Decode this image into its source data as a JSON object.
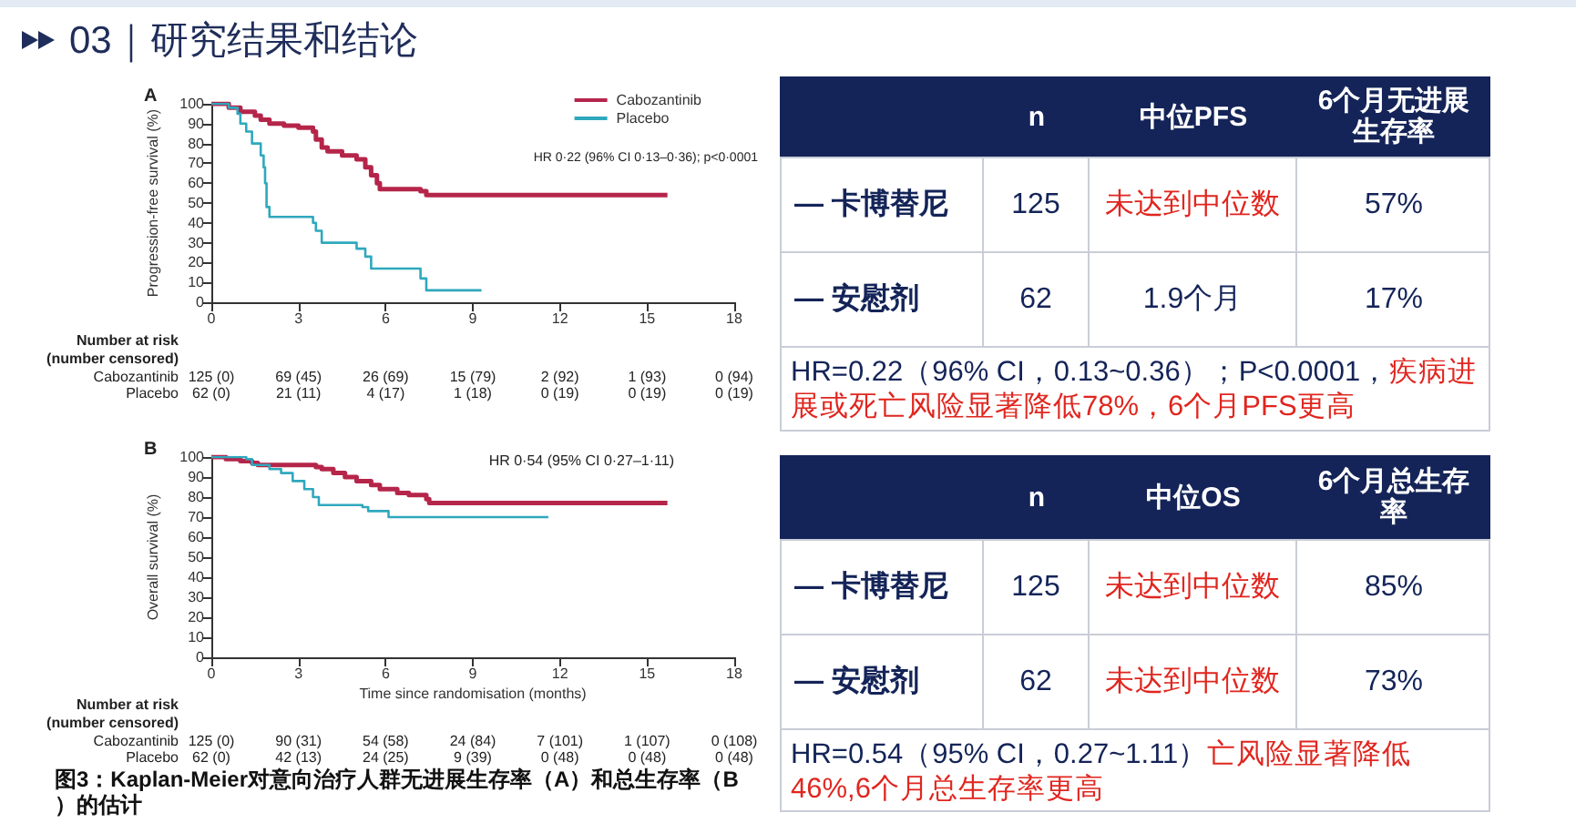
{
  "chart_data": [
    {
      "type": "step",
      "title": "A",
      "ylabel": "Progression-free survival (%)",
      "xlim": [
        0,
        18
      ],
      "xticks": [
        0,
        3,
        6,
        9,
        12,
        15,
        18
      ],
      "ylim": [
        0,
        100
      ],
      "yticks": [
        0,
        10,
        20,
        30,
        40,
        50,
        60,
        70,
        80,
        90,
        100
      ],
      "legend": "top right",
      "marker": "none",
      "line_style": "solid",
      "series": [
        {
          "name": "Cabozantinib",
          "color": "#b5254a",
          "x": [
            0,
            0.6,
            1.0,
            1.5,
            1.7,
            2.0,
            2.5,
            3.0,
            3.5,
            3.6,
            3.8,
            4.0,
            4.5,
            5.0,
            5.3,
            5.5,
            5.7,
            5.8,
            7.2,
            7.4,
            15.7
          ],
          "values": [
            100,
            98,
            96,
            94,
            92,
            90,
            89,
            88,
            86,
            82,
            78,
            76,
            74,
            72,
            68,
            64,
            60,
            57,
            56,
            54,
            54
          ]
        },
        {
          "name": "Placebo",
          "color": "#2fa8bd",
          "x": [
            0,
            0.6,
            0.9,
            1.0,
            1.2,
            1.4,
            1.7,
            1.8,
            1.85,
            1.9,
            2.0,
            3.5,
            3.6,
            3.8,
            5.0,
            5.3,
            5.5,
            7.2,
            7.4,
            9.3
          ],
          "values": [
            100,
            98,
            95,
            90,
            86,
            80,
            74,
            68,
            60,
            48,
            43,
            40,
            36,
            30,
            27,
            23,
            17,
            12,
            6,
            6
          ]
        }
      ],
      "annotations": [
        "HR 0·22 (96% CI 0·13–0·36); p<0·0001",
        "Number at risk\n(number censored)",
        "Cabozantinib",
        "125 (0)",
        "69 (45)",
        "26 (69)",
        "15 (79)",
        "2 (92)",
        "1 (93)",
        "0 (94)",
        "Placebo",
        "62 (0)",
        "21 (11)",
        "4 (17)",
        "1 (18)",
        "0 (19)",
        "0 (19)",
        "0 (19)"
      ]
    },
    {
      "type": "step",
      "title": "B",
      "xlabel": "Time since randomisation (months)",
      "ylabel": "Overall survival (%)",
      "xlim": [
        0,
        18
      ],
      "xticks": [
        0,
        3,
        6,
        9,
        12,
        15,
        18
      ],
      "ylim": [
        0,
        100
      ],
      "yticks": [
        0,
        10,
        20,
        30,
        40,
        50,
        60,
        70,
        80,
        90,
        100
      ],
      "marker": "none",
      "line_style": "solid",
      "series": [
        {
          "color": "#b5254a",
          "x": [
            0,
            0.5,
            1.0,
            1.4,
            1.6,
            3.6,
            3.8,
            4.2,
            4.6,
            5.0,
            5.5,
            5.8,
            6.4,
            6.8,
            7.4,
            7.5,
            15.7
          ],
          "values": [
            100,
            99,
            98,
            97,
            96,
            95,
            94,
            92,
            90,
            88,
            86,
            84,
            82,
            81,
            79,
            77,
            77
          ]
        },
        {
          "color": "#2fa8bd",
          "x": [
            0,
            1.2,
            1.4,
            2.0,
            2.4,
            2.8,
            3.2,
            3.5,
            3.7,
            5.2,
            5.4,
            6.1,
            11.6
          ],
          "values": [
            100,
            99,
            96,
            94,
            92,
            88,
            84,
            80,
            76,
            75,
            73,
            70,
            70
          ]
        }
      ],
      "annotations": [
        "HR 0·54 (95% CI 0·27–1·11)",
        "Number at risk\n(number censored)",
        "Cabozantinib",
        "125 (0)",
        "90 (31)",
        "54 (58)",
        "24 (84)",
        "7 (101)",
        "1 (107)",
        "0 (108)",
        "Placebo",
        "62 (0)",
        "42 (13)",
        "24 (25)",
        "9 (39)",
        "0 (48)",
        "0 (48)",
        "0 (48)",
        "图3：Kaplan-Meier对意向治疗人群无进展生存率（A）和总生存率（B）的估计"
      ]
    },
    {
      "type": "other",
      "title": "03｜研究结果和结论",
      "annotations": [
        "n",
        "中位PFS",
        "6个月无进展生存率",
        "— 卡博替尼",
        "125",
        "未达到中位数",
        "57%",
        "— 安慰剂",
        "62",
        "1.9个月",
        "17%",
        "HR=0.22（96% CI，0.13~0.36）；P<0.0001，",
        "疾病进展或死亡风险显著降低78%，6个月PFS更高",
        "n",
        "中位OS",
        "6个月总生存率",
        "— 卡博替尼",
        "125",
        "未达到中位数",
        "85%",
        "— 安慰剂",
        "62",
        "未达到中位数",
        "73%",
        "HR=0.54（95% CI，0.27~1.11）",
        "亡风险显著降低46%,6个月总生存率更高"
      ]
    }
  ]
}
